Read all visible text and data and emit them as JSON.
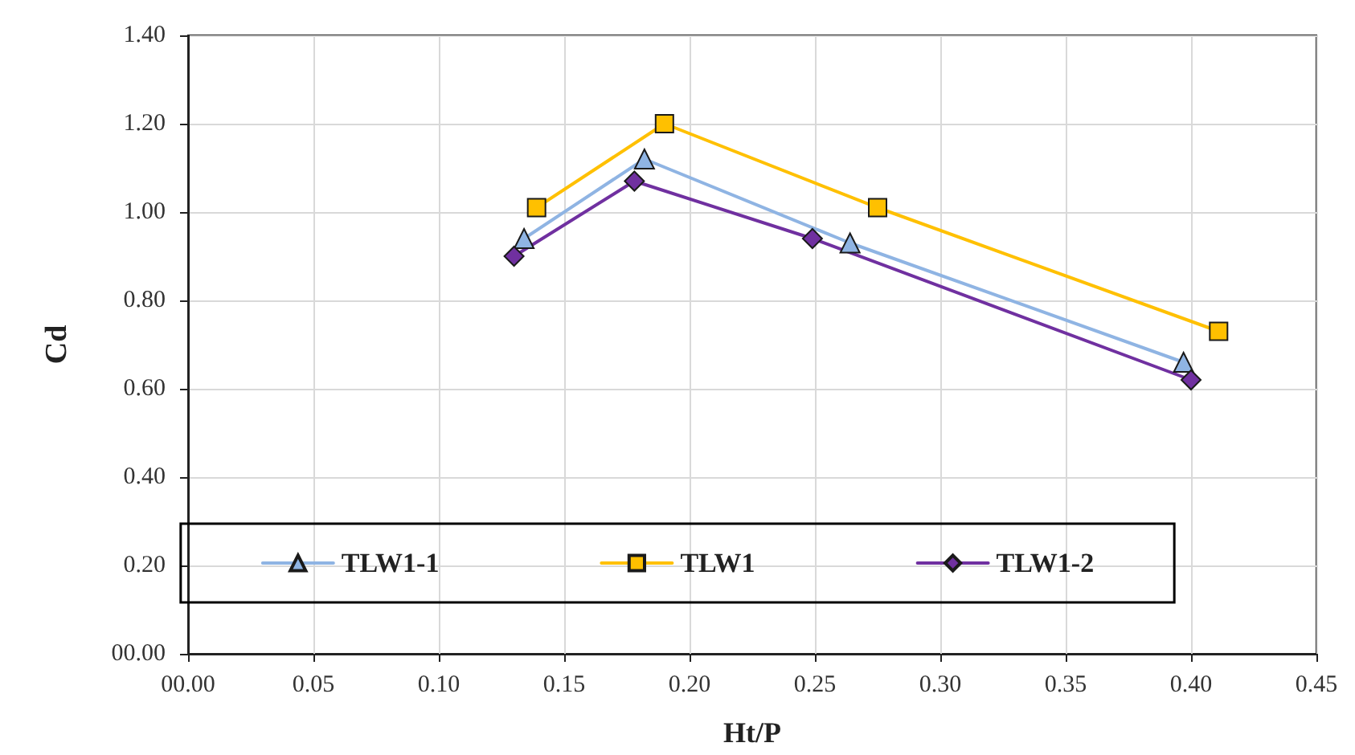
{
  "chart_data": {
    "type": "line",
    "xlabel": "Ht/P",
    "ylabel": "Cd",
    "series": [
      {
        "name": "TLW1-1",
        "color": "#8fb4e3",
        "marker": "triangle",
        "x": [
          0.134,
          0.182,
          0.264,
          0.397
        ],
        "values": [
          0.94,
          1.12,
          0.93,
          0.66
        ]
      },
      {
        "name": "TLW1",
        "color": "#ffc000",
        "marker": "square",
        "x": [
          0.139,
          0.19,
          0.275,
          0.411
        ],
        "values": [
          1.01,
          1.2,
          1.01,
          0.73
        ]
      },
      {
        "name": "TLW1-2",
        "color": "#7030a0",
        "marker": "diamond",
        "x": [
          0.13,
          0.178,
          0.249,
          0.4
        ],
        "values": [
          0.9,
          1.07,
          0.94,
          0.62
        ]
      }
    ],
    "xlim": [
      0,
      0.45
    ],
    "xticks": [
      {
        "value": 0,
        "label": "00.00"
      },
      0.05,
      {
        "value": 0.1,
        "label": "0.10"
      },
      0.15,
      {
        "value": 0.2,
        "label": "0.20"
      },
      0.25,
      {
        "value": 0.3,
        "label": "0.30"
      },
      0.35,
      {
        "value": 0.4,
        "label": "0.40"
      },
      0.45
    ],
    "ylim": [
      0,
      1.4
    ],
    "yticks": [
      {
        "value": 0,
        "label": "00.00"
      },
      {
        "value": 0.2,
        "label": "0.20"
      },
      {
        "value": 0.4,
        "label": "0.40"
      },
      {
        "value": 0.6,
        "label": "0.60"
      },
      {
        "value": 0.8,
        "label": "0.80"
      },
      {
        "value": 1.0,
        "label": "1.00"
      },
      {
        "value": 1.2,
        "label": "1.20"
      },
      {
        "value": 1.4,
        "label": "1.40"
      }
    ],
    "grid": true,
    "legend": "bottom",
    "line_style": "solid"
  }
}
